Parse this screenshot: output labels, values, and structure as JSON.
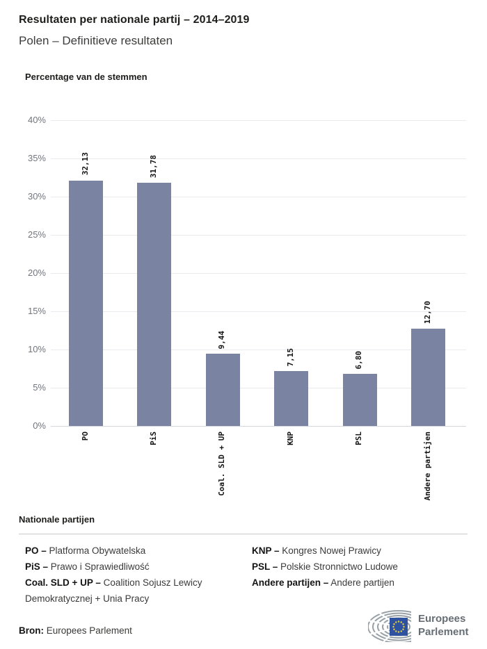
{
  "header": {
    "title": "Resultaten per nationale partij – 2014–2019",
    "subtitle": "Polen – Definitieve resultaten"
  },
  "chart_data": {
    "type": "bar",
    "title": "Percentage van de stemmen",
    "categories": [
      "PO",
      "PiS",
      "Coal. SLD + UP",
      "KNP",
      "PSL",
      "Andere partijen"
    ],
    "values": [
      32.13,
      31.78,
      9.44,
      7.15,
      6.8,
      12.7
    ],
    "value_labels": [
      "32,13",
      "31,78",
      "9,44",
      "7,15",
      "6,80",
      "12,70"
    ],
    "xlabel": "",
    "ylabel": "",
    "ylim": [
      0,
      40
    ],
    "ytick_step": 5,
    "ytick_labels": [
      "0%",
      "5%",
      "10%",
      "15%",
      "20%",
      "25%",
      "30%",
      "35%",
      "40%"
    ],
    "grid": true,
    "legend_position": "none",
    "bar_color": "#7a83a2"
  },
  "legend": {
    "heading": "Nationale partijen",
    "columns": [
      [
        {
          "key": "PO –",
          "value": "Platforma Obywatelska"
        },
        {
          "key": "PiS –",
          "value": "Prawo i Sprawiedliwość"
        },
        {
          "key": "Coal. SLD + UP –",
          "value": "Coalition Sojusz Lewicy Demokratycznej + Unia Pracy"
        }
      ],
      [
        {
          "key": "KNP –",
          "value": "Kongres Nowej Prawicy"
        },
        {
          "key": "PSL –",
          "value": "Polskie Stronnictwo Ludowe"
        },
        {
          "key": "Andere partijen –",
          "value": "Andere partijen"
        }
      ]
    ]
  },
  "footer": {
    "source_label": "Bron:",
    "source_value": "Europees Parlement",
    "logo_icon": "ep-hemicycle-logo",
    "logo_text_line1": "Europees",
    "logo_text_line2": "Parlement"
  },
  "colors": {
    "bar": "#7a83a2",
    "gridline": "#e9eaee",
    "axis_line": "#d3d6dc",
    "ytick_text": "#70757e",
    "eu_flag_blue": "#2e52a0",
    "eu_star_yellow": "#e9d43a",
    "logo_gray": "#98a0a7",
    "logo_text_gray": "#666d74"
  }
}
